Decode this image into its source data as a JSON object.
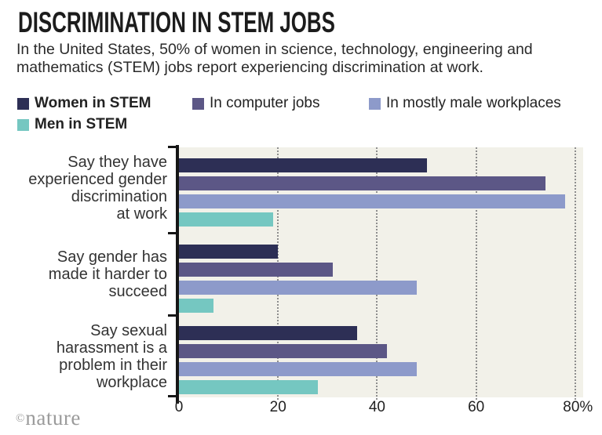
{
  "header": {
    "title": "DISCRIMINATION IN STEM JOBS",
    "subtitle": "In the United States, 50% of women in science, technology, engineering and mathematics (STEM) jobs report experiencing discrimination at work.",
    "subtitle_lines": [
      "In the United States, 50% of women in science, technology, engineering and",
      "mathematics (STEM) jobs report experiencing discrimination at work."
    ]
  },
  "chart_data": {
    "type": "bar",
    "orientation": "horizontal",
    "title": "DISCRIMINATION IN STEM JOBS",
    "categories": [
      "Say they have experienced gender discrimination at work",
      "Say gender has made it harder to succeed",
      "Say sexual harassment is a problem in their workplace"
    ],
    "category_lines": [
      [
        "Say they have",
        "experienced gender",
        "discrimination",
        "at work"
      ],
      [
        "Say gender has",
        "made it harder to",
        "succeed"
      ],
      [
        "Say sexual",
        "harassment is a",
        "problem in their",
        "workplace"
      ]
    ],
    "series": [
      {
        "name": "Women in STEM",
        "color": "#2d2f55",
        "values": [
          50,
          20,
          36
        ],
        "bold_legend": true
      },
      {
        "name": "In computer jobs",
        "color": "#5c5786",
        "values": [
          74,
          31,
          42
        ],
        "bold_legend": false
      },
      {
        "name": "In mostly male workplaces",
        "color": "#8d9aca",
        "values": [
          78,
          48,
          48
        ],
        "bold_legend": false
      },
      {
        "name": "Men in STEM",
        "color": "#75c7c1",
        "values": [
          19,
          7,
          28
        ],
        "bold_legend": true
      }
    ],
    "xlabel": "",
    "ylabel": "",
    "xlim": [
      0,
      81.6
    ],
    "x_ticks": [
      "0",
      "20",
      "40",
      "60",
      "80%"
    ],
    "x_tick_values": [
      0,
      20,
      40,
      60,
      80
    ],
    "grid": "vertical-dotted",
    "plot_bg": "#f2f1e9",
    "gridline_color": "#8e8e8e",
    "axis_color": "#161616",
    "legend_position": "top-left"
  },
  "footer": {
    "credit": "©nature",
    "credit_symbol": "©",
    "credit_name": "nature"
  }
}
